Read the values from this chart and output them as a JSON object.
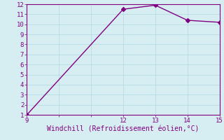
{
  "x": [
    9,
    12,
    13,
    14,
    15
  ],
  "y": [
    1,
    11.5,
    11.9,
    10.4,
    10.2
  ],
  "line_color": "#800080",
  "marker": "D",
  "marker_size": 3,
  "xlim": [
    9,
    15
  ],
  "ylim": [
    1,
    12
  ],
  "xticks": [
    9,
    10,
    11,
    12,
    13,
    14,
    15
  ],
  "yticks": [
    1,
    2,
    3,
    4,
    5,
    6,
    7,
    8,
    9,
    10,
    11,
    12
  ],
  "xlabel": "Windchill (Refroidissement éolien,°C)",
  "background_color": "#d6eef2",
  "grid_color": "#b8dce4",
  "tick_color": "#800080",
  "label_color": "#800080",
  "xlabel_fontsize": 7,
  "tick_fontsize": 6.5,
  "x_show_labels": [
    9,
    12,
    13,
    14,
    15
  ]
}
